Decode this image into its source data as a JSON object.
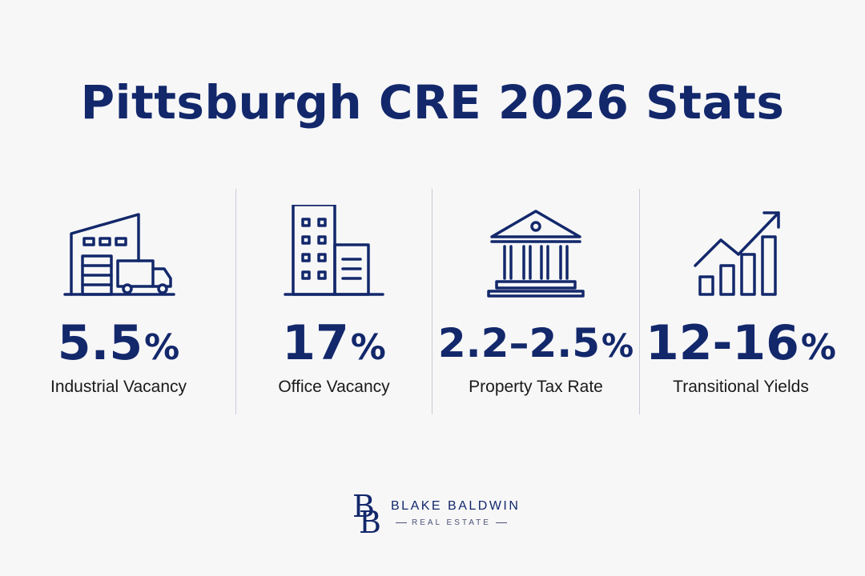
{
  "title": "Pittsburgh CRE 2026 Stats",
  "stats": [
    {
      "icon": "warehouse-truck-icon",
      "value": "5.5",
      "unit": "%",
      "label": "Industrial Vacancy"
    },
    {
      "icon": "office-building-icon",
      "value": "17",
      "unit": "%",
      "label": "Office Vacancy"
    },
    {
      "icon": "government-building-icon",
      "value": "2.2–2.5",
      "unit": "%",
      "label": "Property Tax Rate"
    },
    {
      "icon": "growth-chart-icon",
      "value": "12-16",
      "unit": "%",
      "label": "Transitional Yields"
    }
  ],
  "brand": {
    "monogram": "BB",
    "name": "BLAKE BALDWIN",
    "tagline": "REAL ESTATE"
  },
  "colors": {
    "primary": "#13286b",
    "background": "#f7f7f8",
    "divider": "#c9ccd6"
  }
}
